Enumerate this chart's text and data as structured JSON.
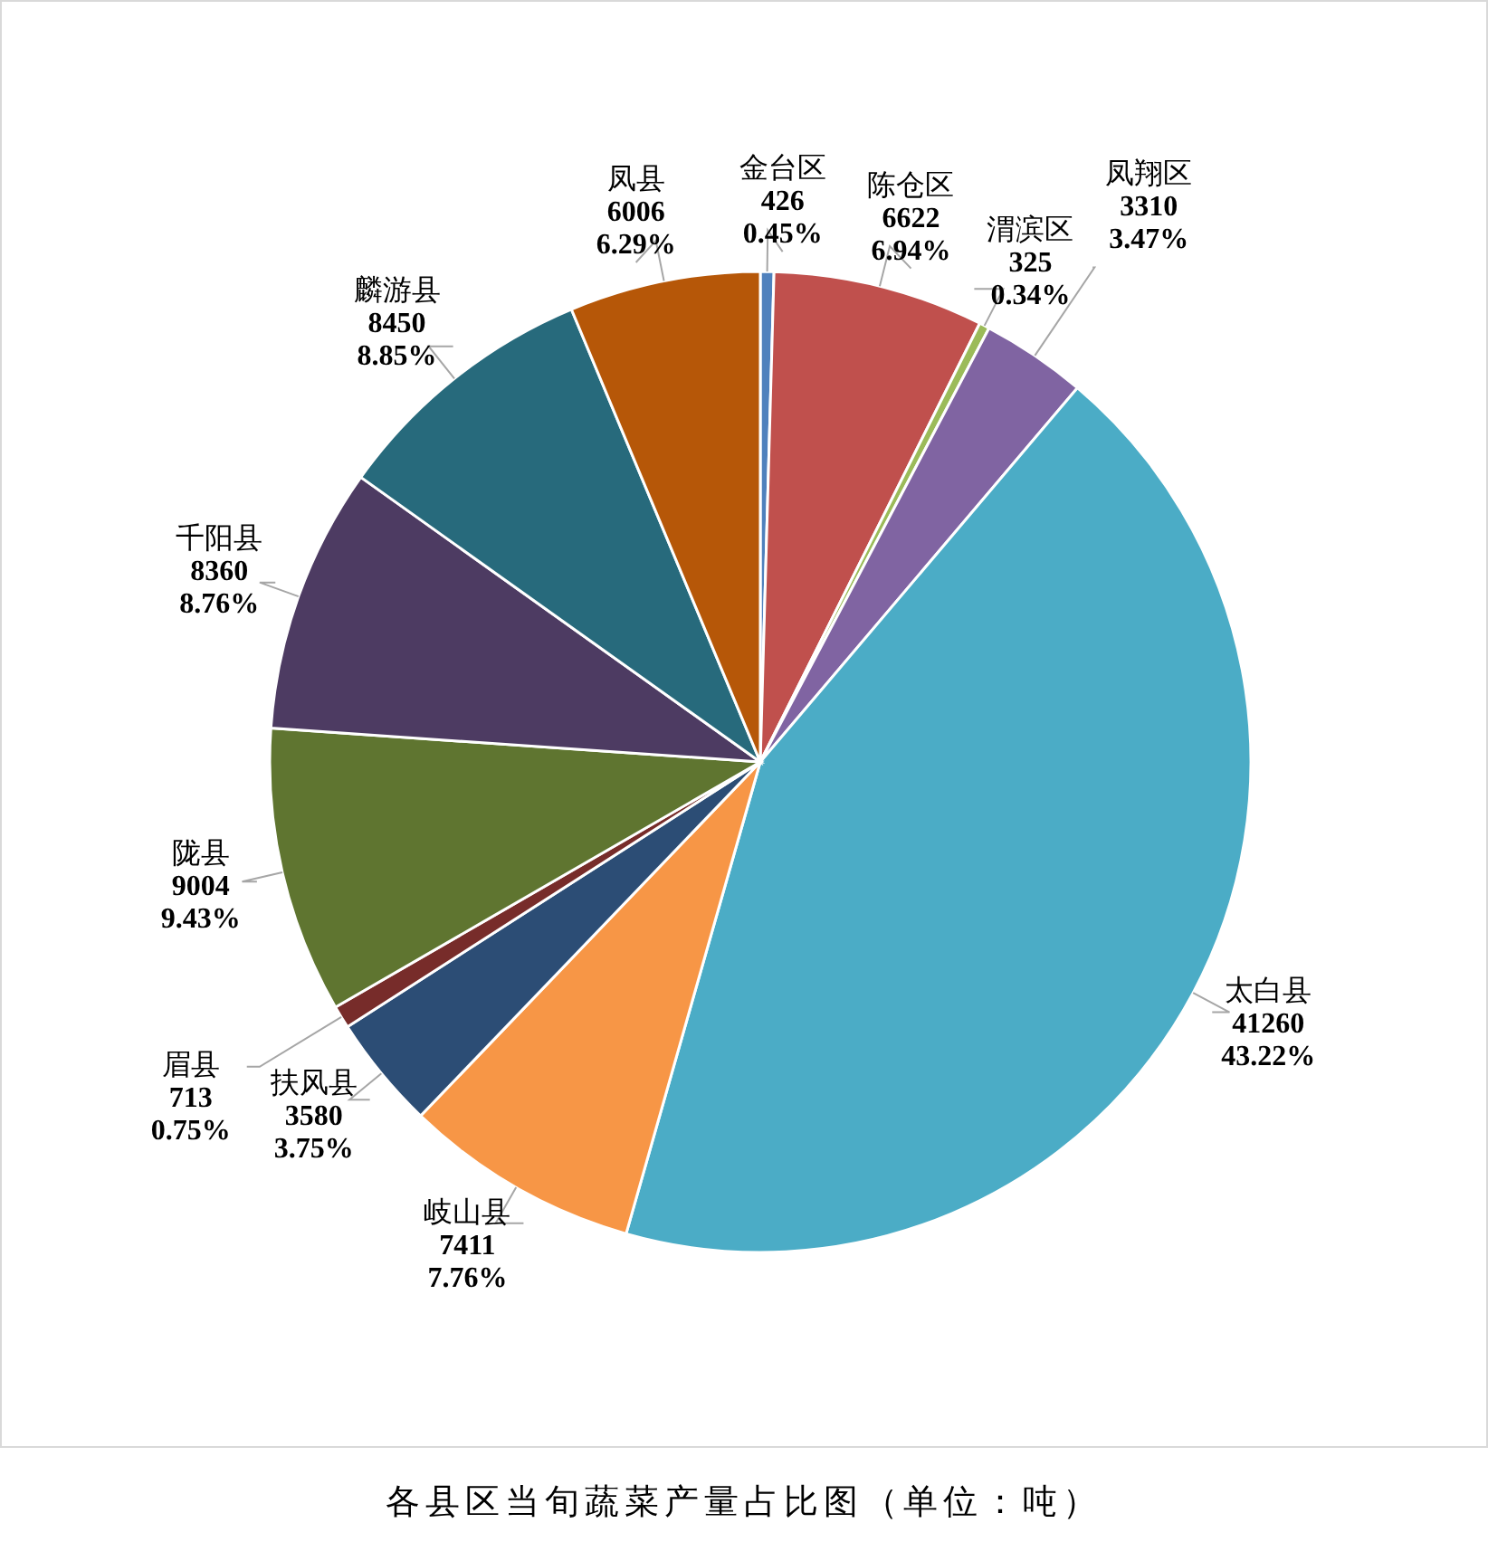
{
  "chart_data": {
    "type": "pie",
    "title": "各县区当旬蔬菜产量占比图（单位：吨）",
    "categories": [
      "金台区",
      "陈仓区",
      "渭滨区",
      "凤翔区",
      "太白县",
      "岐山县",
      "扶风县",
      "眉县",
      "陇县",
      "千阳县",
      "麟游县",
      "凤县"
    ],
    "values": [
      426,
      6622,
      325,
      3310,
      41260,
      7411,
      3580,
      713,
      9004,
      8360,
      8450,
      6006
    ],
    "value_labels": [
      "426\n0.45%",
      "6622\n6.94%",
      "325\n0.34%",
      "3310\n3.47%",
      "41260\n43.22%",
      "7411\n7.76%",
      "3580\n3.75%",
      "713\n0.75%",
      "9004\n9.43%",
      "8360\n8.76%",
      "8450\n8.85%",
      "6006\n6.29%"
    ],
    "colors": [
      "#4f81bd",
      "#c0504d",
      "#9bbb59",
      "#8064a2",
      "#4bacc6",
      "#f79646",
      "#2c4d75",
      "#772c2a",
      "#5f7530",
      "#4d3b62",
      "#276a7c",
      "#b65708"
    ]
  }
}
